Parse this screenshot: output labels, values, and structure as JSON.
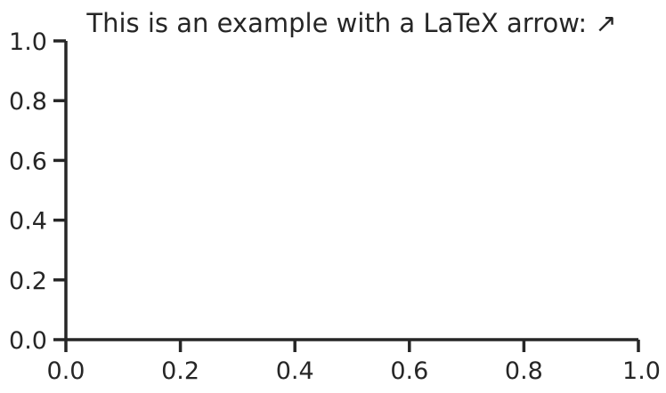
{
  "chart_data": {
    "type": "line",
    "title": "This is an example with a LaTeX arrow:  ↗",
    "xlabel": "",
    "ylabel": "",
    "xlim": [
      0.0,
      1.0
    ],
    "ylim": [
      0.0,
      1.0
    ],
    "x_ticks": [
      0.0,
      0.2,
      0.4,
      0.6,
      0.8,
      1.0
    ],
    "y_ticks": [
      0.0,
      0.2,
      0.4,
      0.6,
      0.8,
      1.0
    ],
    "x_tick_labels": [
      "0.0",
      "0.2",
      "0.4",
      "0.6",
      "0.8",
      "1.0"
    ],
    "y_tick_labels": [
      "0.0",
      "0.2",
      "0.4",
      "0.6",
      "0.8",
      "1.0"
    ],
    "series": [],
    "grid": false,
    "spines": [
      "left",
      "bottom"
    ],
    "colors": {
      "axis": "#262626",
      "text": "#262626",
      "background": "#ffffff"
    }
  }
}
